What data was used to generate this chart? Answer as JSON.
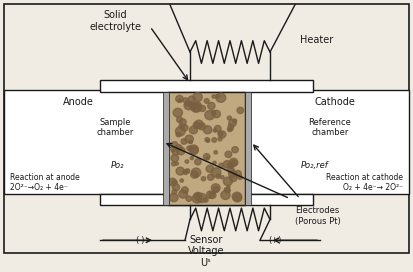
{
  "bg_color": "#f0ece4",
  "black": "#1a1a1a",
  "white": "#ffffff",
  "core_color": "#c0a880",
  "dot_color": "#7a6040",
  "electrode_color": "#909090",
  "top_label_solid_electrolyte": "Solid\nelectrolyte",
  "top_label_heater": "Heater",
  "label_anode": "Anode",
  "label_cathode": "Cathode",
  "label_sample_chamber": "Sample\nchamber",
  "label_reference_chamber": "Reference\nchamber",
  "label_po2_left": "Po₂",
  "label_po2_right": "Po₂,ref",
  "reaction_anode_line1": "Reaction at anode",
  "reaction_anode_line2": "2O²⁻→O₂ + 4e⁻",
  "reaction_cathode_line1": "Reaction at cathode",
  "reaction_cathode_line2": "O₂ + 4e⁻→ 2O²⁻",
  "label_electrodes": "Electrodes\n(Porous Pt)",
  "label_sensor_voltage": "Sensor\nVoltage\nUˢ",
  "label_minus": "(-)",
  "label_plus": "(+)"
}
